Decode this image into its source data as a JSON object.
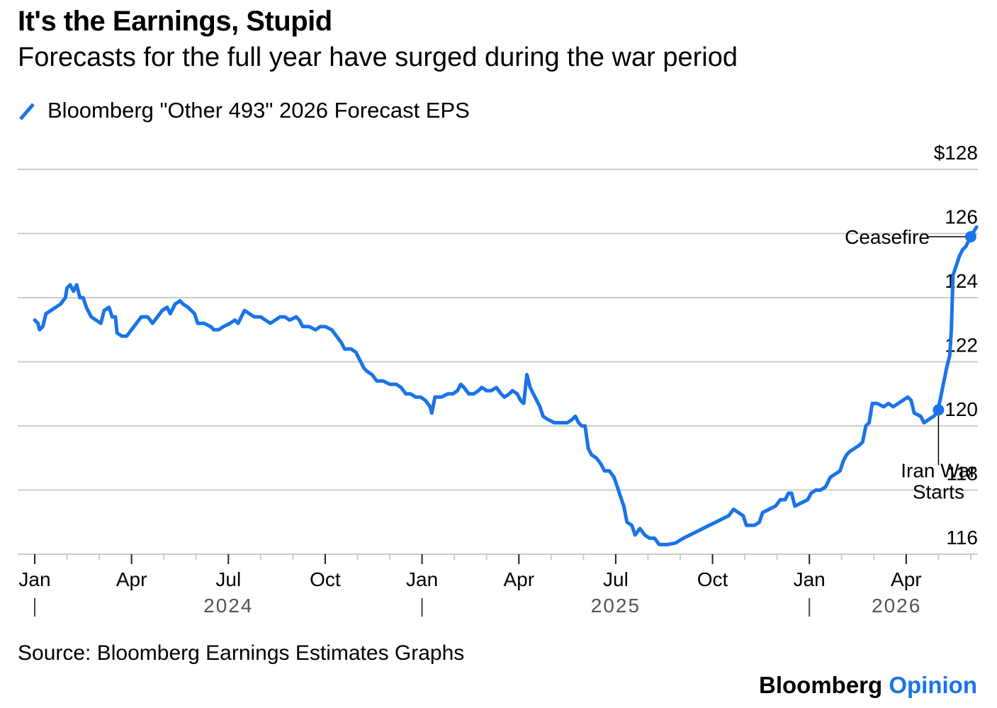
{
  "header": {
    "title": "It's the Earnings, Stupid",
    "subtitle": "Forecasts for the full year have surged during the war period"
  },
  "footer": {
    "source": "Source: Bloomberg Earnings Estimates Graphs",
    "brand_main": "Bloomberg",
    "brand_accent": "Opinion"
  },
  "colors": {
    "line": "#1a73e8",
    "grid": "#cccccc",
    "text": "#000000",
    "year_label": "#555555"
  },
  "chart_data": {
    "type": "line",
    "title": "It's the Earnings, Stupid",
    "subtitle": "Forecasts for the full year have surged during the war period",
    "xlabel": "",
    "ylabel": "",
    "x_units": "months since Jan 2024",
    "xlim": [
      -0.3,
      28.5
    ],
    "ylim": [
      116,
      128
    ],
    "y_ticks": [
      116,
      118,
      120,
      122,
      124,
      126,
      128
    ],
    "y_tick_labels": [
      "116",
      "118",
      "120",
      "122",
      "124",
      "126",
      "$128"
    ],
    "y_axis_side": "right",
    "grid": true,
    "legend_position": "top-left",
    "x_ticks": [
      {
        "m": 0,
        "label": "Jan"
      },
      {
        "m": 3,
        "label": "Apr"
      },
      {
        "m": 6,
        "label": "Jul"
      },
      {
        "m": 9,
        "label": "Oct"
      },
      {
        "m": 12,
        "label": "Jan"
      },
      {
        "m": 15,
        "label": "Apr"
      },
      {
        "m": 18,
        "label": "Jul"
      },
      {
        "m": 21,
        "label": "Oct"
      },
      {
        "m": 24,
        "label": "Jan"
      },
      {
        "m": 27,
        "label": "Apr"
      }
    ],
    "minor_ticks_every_month": true,
    "year_labels": [
      {
        "m": 6,
        "label": "2024"
      },
      {
        "m": 18,
        "label": "2025"
      },
      {
        "m": 26.7,
        "label": "2026"
      }
    ],
    "year_separators": [
      0,
      12,
      24
    ],
    "series": [
      {
        "name": "Bloomberg \"Other 493\" 2026 Forecast EPS",
        "points": [
          [
            0.0,
            123.3
          ],
          [
            0.1,
            123.2
          ],
          [
            0.15,
            123.0
          ],
          [
            0.25,
            123.1
          ],
          [
            0.35,
            123.5
          ],
          [
            0.5,
            123.6
          ],
          [
            0.65,
            123.7
          ],
          [
            0.8,
            123.8
          ],
          [
            0.95,
            124.0
          ],
          [
            1.0,
            124.3
          ],
          [
            1.1,
            124.4
          ],
          [
            1.2,
            124.2
          ],
          [
            1.3,
            124.4
          ],
          [
            1.4,
            124.0
          ],
          [
            1.5,
            124.0
          ],
          [
            1.6,
            123.7
          ],
          [
            1.75,
            123.4
          ],
          [
            1.9,
            123.3
          ],
          [
            2.05,
            123.2
          ],
          [
            2.15,
            123.6
          ],
          [
            2.3,
            123.7
          ],
          [
            2.4,
            123.4
          ],
          [
            2.5,
            123.4
          ],
          [
            2.55,
            122.9
          ],
          [
            2.7,
            122.8
          ],
          [
            2.85,
            122.8
          ],
          [
            3.0,
            123.0
          ],
          [
            3.15,
            123.2
          ],
          [
            3.3,
            123.4
          ],
          [
            3.5,
            123.4
          ],
          [
            3.65,
            123.2
          ],
          [
            3.8,
            123.4
          ],
          [
            3.95,
            123.6
          ],
          [
            4.1,
            123.7
          ],
          [
            4.2,
            123.5
          ],
          [
            4.35,
            123.8
          ],
          [
            4.5,
            123.9
          ],
          [
            4.6,
            123.8
          ],
          [
            4.75,
            123.7
          ],
          [
            4.85,
            123.6
          ],
          [
            4.95,
            123.5
          ],
          [
            5.05,
            123.2
          ],
          [
            5.25,
            123.2
          ],
          [
            5.45,
            123.1
          ],
          [
            5.55,
            123.0
          ],
          [
            5.7,
            123.0
          ],
          [
            5.85,
            123.1
          ],
          [
            6.05,
            123.2
          ],
          [
            6.2,
            123.3
          ],
          [
            6.3,
            123.2
          ],
          [
            6.4,
            123.4
          ],
          [
            6.5,
            123.6
          ],
          [
            6.65,
            123.5
          ],
          [
            6.8,
            123.4
          ],
          [
            7.0,
            123.4
          ],
          [
            7.15,
            123.3
          ],
          [
            7.3,
            123.2
          ],
          [
            7.45,
            123.3
          ],
          [
            7.6,
            123.4
          ],
          [
            7.75,
            123.4
          ],
          [
            7.9,
            123.3
          ],
          [
            8.1,
            123.4
          ],
          [
            8.2,
            123.3
          ],
          [
            8.3,
            123.1
          ],
          [
            8.5,
            123.1
          ],
          [
            8.7,
            123.0
          ],
          [
            8.85,
            123.1
          ],
          [
            9.0,
            123.1
          ],
          [
            9.2,
            123.0
          ],
          [
            9.35,
            122.8
          ],
          [
            9.5,
            122.6
          ],
          [
            9.6,
            122.4
          ],
          [
            9.8,
            122.4
          ],
          [
            9.95,
            122.3
          ],
          [
            10.05,
            122.1
          ],
          [
            10.2,
            121.8
          ],
          [
            10.3,
            121.7
          ],
          [
            10.45,
            121.6
          ],
          [
            10.6,
            121.4
          ],
          [
            10.8,
            121.4
          ],
          [
            11.0,
            121.3
          ],
          [
            11.2,
            121.3
          ],
          [
            11.35,
            121.2
          ],
          [
            11.5,
            121.0
          ],
          [
            11.65,
            121.0
          ],
          [
            11.8,
            120.9
          ],
          [
            11.95,
            120.9
          ],
          [
            12.1,
            120.8
          ],
          [
            12.25,
            120.6
          ],
          [
            12.3,
            120.4
          ],
          [
            12.4,
            120.9
          ],
          [
            12.6,
            120.9
          ],
          [
            12.8,
            121.0
          ],
          [
            12.95,
            121.0
          ],
          [
            13.1,
            121.1
          ],
          [
            13.2,
            121.3
          ],
          [
            13.3,
            121.2
          ],
          [
            13.45,
            121.0
          ],
          [
            13.6,
            121.0
          ],
          [
            13.75,
            121.1
          ],
          [
            13.85,
            121.2
          ],
          [
            14.0,
            121.1
          ],
          [
            14.15,
            121.1
          ],
          [
            14.3,
            121.2
          ],
          [
            14.45,
            121.0
          ],
          [
            14.55,
            120.9
          ],
          [
            14.7,
            121.0
          ],
          [
            14.8,
            121.1
          ],
          [
            14.95,
            121.0
          ],
          [
            15.05,
            120.8
          ],
          [
            15.15,
            120.7
          ],
          [
            15.25,
            121.6
          ],
          [
            15.35,
            121.2
          ],
          [
            15.45,
            121.0
          ],
          [
            15.55,
            120.8
          ],
          [
            15.65,
            120.6
          ],
          [
            15.75,
            120.3
          ],
          [
            15.9,
            120.2
          ],
          [
            16.1,
            120.1
          ],
          [
            16.3,
            120.1
          ],
          [
            16.5,
            120.1
          ],
          [
            16.65,
            120.2
          ],
          [
            16.75,
            120.3
          ],
          [
            16.85,
            120.1
          ],
          [
            16.95,
            120.0
          ],
          [
            17.05,
            120.0
          ],
          [
            17.15,
            119.3
          ],
          [
            17.25,
            119.1
          ],
          [
            17.4,
            119.0
          ],
          [
            17.55,
            118.8
          ],
          [
            17.65,
            118.6
          ],
          [
            17.8,
            118.6
          ],
          [
            17.95,
            118.4
          ],
          [
            18.05,
            118.1
          ],
          [
            18.15,
            117.8
          ],
          [
            18.25,
            117.5
          ],
          [
            18.35,
            117.0
          ],
          [
            18.5,
            116.9
          ],
          [
            18.6,
            116.6
          ],
          [
            18.75,
            116.8
          ],
          [
            18.9,
            116.6
          ],
          [
            19.05,
            116.5
          ],
          [
            19.2,
            116.5
          ],
          [
            19.35,
            116.3
          ],
          [
            19.6,
            116.3
          ],
          [
            19.85,
            116.35
          ],
          [
            20.1,
            116.5
          ],
          [
            20.3,
            116.6
          ],
          [
            20.5,
            116.7
          ],
          [
            20.7,
            116.8
          ],
          [
            20.9,
            116.9
          ],
          [
            21.1,
            117.0
          ],
          [
            21.3,
            117.1
          ],
          [
            21.5,
            117.2
          ],
          [
            21.65,
            117.4
          ],
          [
            21.8,
            117.3
          ],
          [
            21.95,
            117.2
          ],
          [
            22.05,
            116.9
          ],
          [
            22.3,
            116.9
          ],
          [
            22.45,
            117.0
          ],
          [
            22.55,
            117.3
          ],
          [
            22.75,
            117.4
          ],
          [
            22.95,
            117.5
          ],
          [
            23.1,
            117.7
          ],
          [
            23.25,
            117.7
          ],
          [
            23.35,
            117.9
          ],
          [
            23.45,
            117.9
          ],
          [
            23.55,
            117.5
          ],
          [
            23.75,
            117.6
          ],
          [
            23.95,
            117.7
          ],
          [
            24.05,
            117.9
          ],
          [
            24.2,
            118.0
          ],
          [
            24.35,
            118.0
          ],
          [
            24.5,
            118.1
          ],
          [
            24.65,
            118.4
          ],
          [
            24.8,
            118.5
          ],
          [
            24.95,
            118.6
          ],
          [
            25.05,
            118.9
          ],
          [
            25.15,
            119.1
          ],
          [
            25.25,
            119.2
          ],
          [
            25.4,
            119.3
          ],
          [
            25.55,
            119.4
          ],
          [
            25.65,
            119.5
          ],
          [
            25.75,
            120.0
          ],
          [
            25.85,
            120.1
          ],
          [
            25.95,
            120.7
          ],
          [
            26.1,
            120.7
          ],
          [
            26.3,
            120.6
          ],
          [
            26.45,
            120.7
          ],
          [
            26.6,
            120.6
          ],
          [
            26.75,
            120.7
          ],
          [
            26.9,
            120.8
          ],
          [
            27.05,
            120.9
          ],
          [
            27.15,
            120.8
          ],
          [
            27.25,
            120.4
          ],
          [
            27.45,
            120.3
          ],
          [
            27.55,
            120.1
          ],
          [
            27.7,
            120.2
          ],
          [
            27.85,
            120.3
          ],
          [
            27.95,
            120.4
          ],
          [
            28.05,
            120.8
          ],
          [
            28.15,
            121.3
          ],
          [
            28.25,
            121.8
          ],
          [
            28.35,
            122.2
          ],
          [
            28.4,
            123.0
          ],
          [
            28.45,
            124.7
          ],
          [
            28.55,
            125.0
          ],
          [
            28.65,
            125.3
          ],
          [
            28.75,
            125.5
          ],
          [
            28.85,
            125.6
          ],
          [
            28.95,
            125.8
          ],
          [
            29.05,
            126.0
          ],
          [
            29.12,
            126.1
          ],
          [
            29.18,
            126.2
          ]
        ]
      }
    ],
    "annotations": [
      {
        "label": "Ceasefire",
        "m": 29.0,
        "value": 125.9,
        "label_side": "left"
      },
      {
        "label_lines": [
          "Iran War",
          "Starts"
        ],
        "m": 28.0,
        "value": 120.5,
        "label_side": "below"
      }
    ]
  }
}
